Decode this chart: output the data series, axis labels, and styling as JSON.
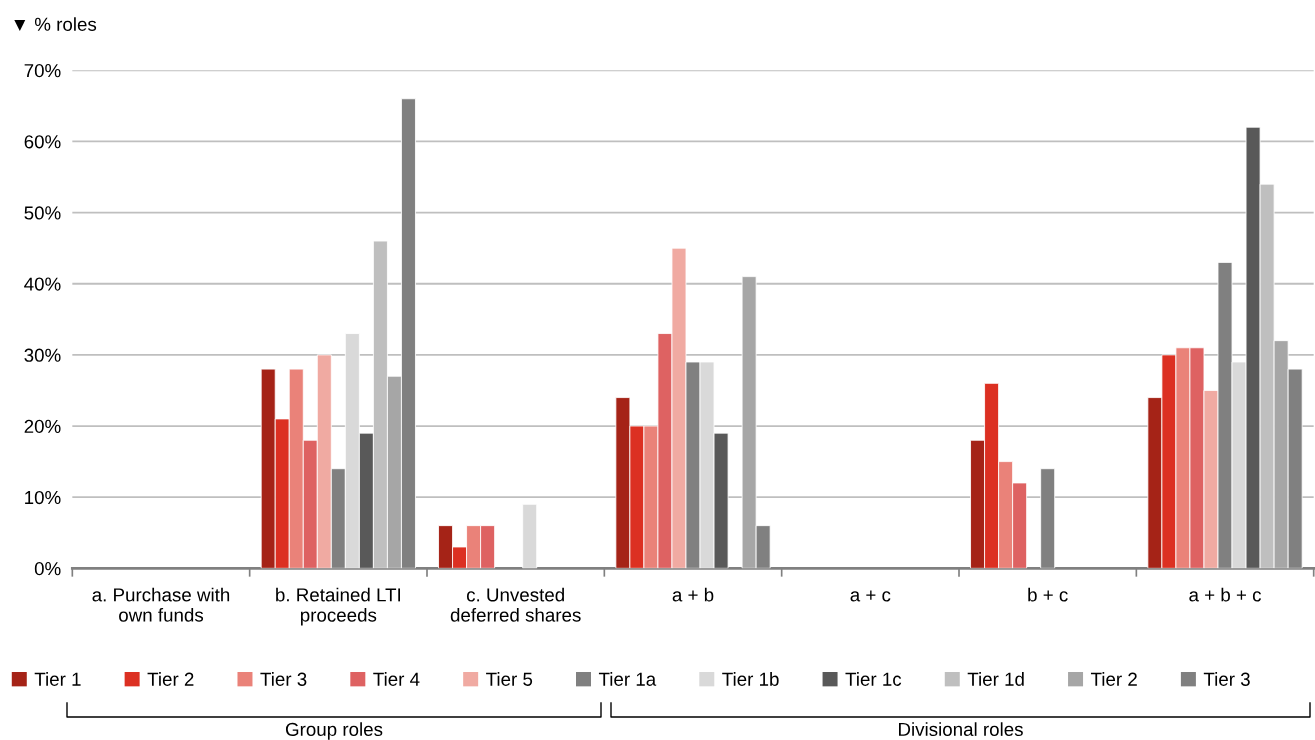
{
  "chart_data": {
    "type": "bar",
    "ylabel": "▼ % roles",
    "categories": [
      "a. Purchase with\nown funds",
      "b. Retained LTI\nproceeds",
      "c. Unvested\ndeferred shares",
      "a + b",
      "a + c",
      "b + c",
      "a + b + c"
    ],
    "series": [
      {
        "name": "Tier 1",
        "color": "#a52317",
        "values": [
          null,
          28,
          6,
          24,
          null,
          18,
          24
        ]
      },
      {
        "name": "Tier 2",
        "color": "#dc3022",
        "values": [
          null,
          21,
          3,
          20,
          null,
          26,
          30
        ]
      },
      {
        "name": "Tier 3",
        "color": "#ea8279",
        "values": [
          null,
          28,
          6,
          20,
          null,
          15,
          31
        ]
      },
      {
        "name": "Tier 4",
        "color": "#de6262",
        "values": [
          null,
          18,
          6,
          33,
          null,
          12,
          31
        ]
      },
      {
        "name": "Tier 5",
        "color": "#f0aaa2",
        "values": [
          null,
          30,
          null,
          45,
          null,
          null,
          25
        ]
      },
      {
        "name": "Tier 1a",
        "color": "#808080",
        "values": [
          null,
          14,
          null,
          29,
          null,
          14,
          43
        ]
      },
      {
        "name": "Tier 1b",
        "color": "#d9d9d9",
        "values": [
          null,
          33,
          9,
          29,
          null,
          null,
          29
        ]
      },
      {
        "name": "Tier 1c",
        "color": "#595959",
        "values": [
          null,
          19,
          null,
          19,
          null,
          null,
          62
        ]
      },
      {
        "name": "Tier 1d",
        "color": "#bfbfbf",
        "values": [
          null,
          46,
          null,
          null,
          null,
          null,
          54
        ]
      },
      {
        "name": "Tier 2",
        "color": "#a6a6a6",
        "values": [
          null,
          27,
          null,
          41,
          null,
          null,
          32
        ]
      },
      {
        "name": "Tier 3",
        "color": "#808080",
        "values": [
          null,
          66,
          null,
          6,
          null,
          null,
          28
        ]
      }
    ],
    "ylim": [
      0,
      70
    ],
    "yticks": [
      {
        "value": 0,
        "label": "0%"
      },
      {
        "value": 10,
        "label": "10%"
      },
      {
        "value": 20,
        "label": "20%"
      },
      {
        "value": 30,
        "label": "30%"
      },
      {
        "value": 40,
        "label": "40%"
      },
      {
        "value": 50,
        "label": "50%"
      },
      {
        "value": 60,
        "label": "60%"
      },
      {
        "value": 70,
        "label": "70%"
      }
    ],
    "grid": "y",
    "legend": "bottom",
    "annotations": [
      "Group roles",
      "Divisional roles"
    ]
  }
}
